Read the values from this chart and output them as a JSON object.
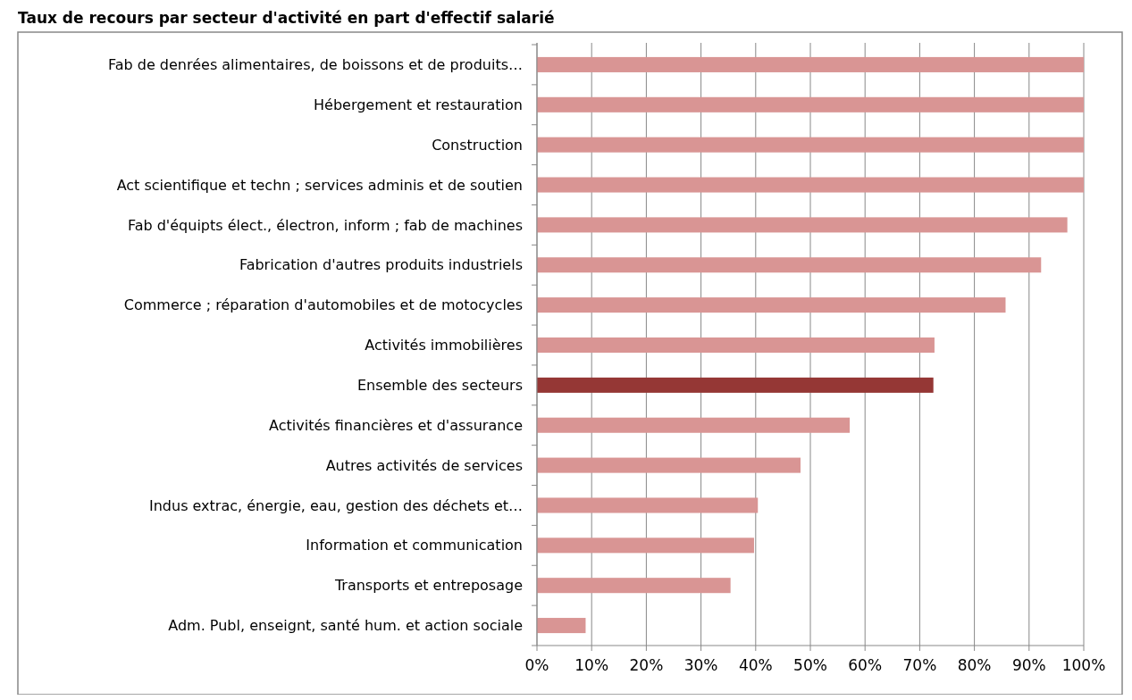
{
  "chart_data": {
    "type": "bar",
    "orientation": "horizontal",
    "title": "Taux de recours par secteur d'activité en part d'effectif salarié",
    "categories": [
      "Fab de denrées alimentaires, de boissons et  de produits…",
      "Hébergement et restauration",
      "Construction",
      "Act scientifique et techn ; services adminis et de soutien",
      "Fab d'équipts élect., électron, inform ; fab de machines",
      "Fabrication d'autres produits industriels",
      "Commerce ; réparation d'automobiles et de motocycles",
      "Activités immobilières",
      "Ensemble des secteurs",
      "Activités financières et d'assurance",
      "Autres activités de services",
      "Indus extrac,  énergie, eau, gestion des déchets et…",
      "Information et communication",
      "Transports et entreposage",
      "Adm. Publ, enseignt, santé hum. et action sociale"
    ],
    "values": [
      100,
      100,
      100,
      100,
      97.0,
      92.2,
      85.7,
      72.7,
      72.5,
      57.2,
      48.2,
      40.4,
      39.7,
      35.4,
      8.9
    ],
    "colors": [
      "#d99594",
      "#d99594",
      "#d99594",
      "#d99594",
      "#d99594",
      "#d99594",
      "#d99594",
      "#d99594",
      "#953735",
      "#d99594",
      "#d99594",
      "#d99594",
      "#d99594",
      "#d99594",
      "#d99594"
    ],
    "xlim": [
      0,
      100
    ],
    "xticks": [
      {
        "value": 0,
        "label": "0%"
      },
      {
        "value": 10,
        "label": "10%"
      },
      {
        "value": 20,
        "label": "20%"
      },
      {
        "value": 30,
        "label": "30%"
      },
      {
        "value": 40,
        "label": "40%"
      },
      {
        "value": 50,
        "label": "50%"
      },
      {
        "value": 60,
        "label": "60%"
      },
      {
        "value": 70,
        "label": "70%"
      },
      {
        "value": 80,
        "label": "80%"
      },
      {
        "value": 90,
        "label": "90%"
      },
      {
        "value": 100,
        "label": "100%"
      }
    ],
    "grid": "x"
  }
}
